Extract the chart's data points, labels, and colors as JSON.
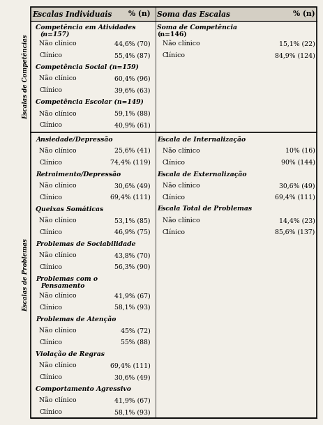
{
  "bg_color": "#f2efe8",
  "header_bg": "#d4cfc4",
  "rows": [
    {
      "col1": "Escalas Individuais",
      "col2": "% (n)",
      "col3": "Soma das Escalas",
      "col4": "% (n)",
      "type": "header"
    },
    {
      "col1": "Competência em Atividades\n(n=157)",
      "col2": "",
      "col3": "Soma de Competência\n(n=146)",
      "col4": "",
      "type": "section"
    },
    {
      "col1": "Não clínico",
      "col2": "44,6% (70)",
      "col3": "Não clínico",
      "col4": "15,1% (22)",
      "type": "data"
    },
    {
      "col1": "Clínico",
      "col2": "55,4% (87)",
      "col3": "Clínico",
      "col4": "84,9% (124)",
      "type": "data"
    },
    {
      "col1": "Competência Social (n=159)",
      "col2": "",
      "col3": "",
      "col4": "",
      "type": "section"
    },
    {
      "col1": "Não clínico",
      "col2": "60,4% (96)",
      "col3": "",
      "col4": "",
      "type": "data"
    },
    {
      "col1": "Clínico",
      "col2": "39,6% (63)",
      "col3": "",
      "col4": "",
      "type": "data"
    },
    {
      "col1": "Competência Escolar (n=149)",
      "col2": "",
      "col3": "",
      "col4": "",
      "type": "section"
    },
    {
      "col1": "Não clínico",
      "col2": "59,1% (88)",
      "col3": "",
      "col4": "",
      "type": "data"
    },
    {
      "col1": "Clínico",
      "col2": "40,9% (61)",
      "col3": "",
      "col4": "",
      "type": "data"
    },
    {
      "col1": "",
      "col2": "",
      "col3": "",
      "col4": "",
      "type": "separator"
    },
    {
      "col1": "Ansiedade/Depressão",
      "col2": "",
      "col3": "Escala de Internalização",
      "col4": "",
      "type": "section"
    },
    {
      "col1": "Não clínico",
      "col2": "25,6% (41)",
      "col3": "Não clínico",
      "col4": "10% (16)",
      "type": "data"
    },
    {
      "col1": "Clínico",
      "col2": "74,4% (119)",
      "col3": "Clínico",
      "col4": "90% (144)",
      "type": "data"
    },
    {
      "col1": "Retraimento/Depressão",
      "col2": "",
      "col3": "Escala de Externalização",
      "col4": "",
      "type": "section"
    },
    {
      "col1": "Não clínico",
      "col2": "30,6% (49)",
      "col3": "Não clínico",
      "col4": "30,6% (49)",
      "type": "data"
    },
    {
      "col1": "Clínico",
      "col2": "69,4% (111)",
      "col3": "Clínico",
      "col4": "69,4% (111)",
      "type": "data"
    },
    {
      "col1": "Queixas Somáticas",
      "col2": "",
      "col3": "Escala Total de Problemas",
      "col4": "",
      "type": "section"
    },
    {
      "col1": "Não clínico",
      "col2": "53,1% (85)",
      "col3": "Não clínico",
      "col4": "14,4% (23)",
      "type": "data"
    },
    {
      "col1": "Clínico",
      "col2": "46,9% (75)",
      "col3": "Clínico",
      "col4": "85,6% (137)",
      "type": "data"
    },
    {
      "col1": "Problemas de Sociabilidade",
      "col2": "",
      "col3": "",
      "col4": "",
      "type": "section"
    },
    {
      "col1": "Não clínico",
      "col2": "43,8% (70)",
      "col3": "",
      "col4": "",
      "type": "data"
    },
    {
      "col1": "Clínico",
      "col2": "56,3% (90)",
      "col3": "",
      "col4": "",
      "type": "data"
    },
    {
      "col1": "Problemas com o\nPensamento",
      "col2": "",
      "col3": "",
      "col4": "",
      "type": "section"
    },
    {
      "col1": "Não clínico",
      "col2": "41,9% (67)",
      "col3": "",
      "col4": "",
      "type": "data"
    },
    {
      "col1": "Clínico",
      "col2": "58,1% (93)",
      "col3": "",
      "col4": "",
      "type": "data"
    },
    {
      "col1": "Problemas de Atenção",
      "col2": "",
      "col3": "",
      "col4": "",
      "type": "section"
    },
    {
      "col1": "Não clínico",
      "col2": "45% (72)",
      "col3": "",
      "col4": "",
      "type": "data"
    },
    {
      "col1": "Clínico",
      "col2": "55% (88)",
      "col3": "",
      "col4": "",
      "type": "data"
    },
    {
      "col1": "Violação de Regras",
      "col2": "",
      "col3": "",
      "col4": "",
      "type": "section"
    },
    {
      "col1": "Não clínico",
      "col2": "69,4% (111)",
      "col3": "",
      "col4": "",
      "type": "data"
    },
    {
      "col1": "Clínico",
      "col2": "30,6% (49)",
      "col3": "",
      "col4": "",
      "type": "data"
    },
    {
      "col1": "Comportamento Agressivo",
      "col2": "",
      "col3": "",
      "col4": "",
      "type": "section"
    },
    {
      "col1": "Não clínico",
      "col2": "41,9% (67)",
      "col3": "",
      "col4": "",
      "type": "data"
    },
    {
      "col1": "Clínico",
      "col2": "58,1% (93)",
      "col3": "",
      "col4": "",
      "type": "data"
    }
  ],
  "sidebar_label1": "Escalas de Competências",
  "sidebar_label2": "Escalas de Problemas",
  "font_size": 7.2
}
